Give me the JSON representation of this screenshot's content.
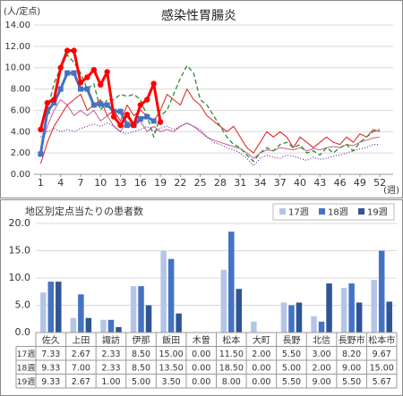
{
  "chart_data": [
    {
      "type": "line",
      "title": "感染性胃腸炎",
      "ylabel": "(人/定点)",
      "xlabel": "(週)",
      "x": [
        1,
        2,
        3,
        4,
        5,
        6,
        7,
        8,
        9,
        10,
        11,
        12,
        13,
        14,
        15,
        16,
        17,
        18,
        19,
        20,
        21,
        22,
        23,
        24,
        25,
        26,
        27,
        28,
        29,
        30,
        31,
        32,
        33,
        34,
        35,
        36,
        37,
        38,
        39,
        40,
        41,
        42,
        43,
        44,
        45,
        46,
        47,
        48,
        49,
        50,
        51,
        52
      ],
      "xlim": [
        0,
        54
      ],
      "xticks": [
        1,
        4,
        7,
        10,
        13,
        16,
        19,
        22,
        25,
        28,
        31,
        34,
        37,
        40,
        43,
        46,
        49,
        52
      ],
      "ylim": [
        0,
        14
      ],
      "yticks": [
        {
          "value": 0,
          "label": "0.00"
        },
        {
          "value": 2,
          "label": "2.00"
        },
        {
          "value": 4,
          "label": "4.00"
        },
        {
          "value": 6,
          "label": "6.00"
        },
        {
          "value": 8,
          "label": "8.00"
        },
        {
          "value": 10,
          "label": "10.00"
        },
        {
          "value": 12,
          "label": "12.00"
        },
        {
          "value": 14,
          "label": "14.00"
        }
      ],
      "grid": true,
      "series": [
        {
          "color": "#c06090",
          "line_width": 1,
          "values": [
            2.5,
            4.5,
            6.0,
            7.0,
            6.5,
            5.5,
            6.0,
            5.5,
            6.0,
            5.0,
            5.5,
            4.5,
            4.0,
            5.0,
            4.5,
            5.0,
            4.0,
            4.5,
            4.0,
            4.2,
            4.0,
            4.5,
            4.8,
            4.5,
            4.0,
            3.5,
            3.2,
            3.0,
            2.8,
            2.6,
            2.4,
            2.0,
            1.5,
            2.0,
            2.3,
            2.2,
            2.5,
            2.4,
            2.3,
            2.5,
            2.2,
            2.4,
            2.3,
            2.5,
            2.6,
            2.5,
            2.8,
            2.7,
            3.0,
            3.2,
            3.4,
            3.5
          ]
        },
        {
          "color": "#7030a0",
          "line_width": 1.2,
          "dash": "1,2",
          "values": [
            3.5,
            4.0,
            4.3,
            4.0,
            4.2,
            4.0,
            4.3,
            4.5,
            4.7,
            4.5,
            4.8,
            4.5,
            4.0,
            3.8,
            4.0,
            4.2,
            4.5,
            4.0,
            4.3,
            4.5,
            4.2,
            4.5,
            4.8,
            4.5,
            4.2,
            3.5,
            3.0,
            2.8,
            2.5,
            2.3,
            2.0,
            1.5,
            0.8,
            1.5,
            1.8,
            1.6,
            1.5,
            1.8,
            1.7,
            1.5,
            1.3,
            1.6,
            1.4,
            1.5,
            1.7,
            1.8,
            2.0,
            2.2,
            2.4,
            2.5,
            2.8,
            2.8
          ]
        },
        {
          "color": "#e02020",
          "line_width": 1,
          "values": [
            1.0,
            3.0,
            4.5,
            5.5,
            6.5,
            7.0,
            7.5,
            6.0,
            6.5,
            7.0,
            5.5,
            6.0,
            5.0,
            6.5,
            5.5,
            6.0,
            5.5,
            5.0,
            6.0,
            7.5,
            7.0,
            6.5,
            8.0,
            7.0,
            6.5,
            5.5,
            5.0,
            4.5,
            4.0,
            4.5,
            3.5,
            2.5,
            2.0,
            3.0,
            4.0,
            3.5,
            4.0,
            3.5,
            2.5,
            3.5,
            3.0,
            2.5,
            3.0,
            3.5,
            3.0,
            2.8,
            3.5,
            3.0,
            3.8,
            3.5,
            4.2,
            4.0
          ]
        },
        {
          "color": "#2e8b2e",
          "line_width": 1.3,
          "dash": "5,3",
          "values": [
            2.0,
            6.0,
            8.5,
            10.0,
            11.2,
            10.5,
            9.5,
            8.0,
            8.5,
            6.0,
            7.0,
            7.0,
            7.5,
            7.3,
            7.5,
            7.0,
            5.5,
            3.5,
            5.5,
            6.0,
            7.5,
            9.0,
            10.2,
            9.5,
            7.0,
            6.5,
            5.5,
            4.5,
            3.5,
            2.8,
            2.5,
            1.8,
            1.2,
            2.0,
            2.5,
            2.2,
            2.8,
            3.0,
            2.5,
            2.8,
            2.0,
            2.2,
            1.8,
            2.5,
            2.0,
            2.5,
            2.8,
            2.2,
            3.0,
            3.5,
            4.0,
            4.2
          ]
        },
        {
          "color": "#4472c4",
          "line_width": 3,
          "marker": "square",
          "values": [
            1.9,
            5.9,
            6.7,
            8.0,
            9.5,
            9.5,
            8.0,
            8.0,
            6.5,
            6.6,
            6.5,
            5.9,
            5.9,
            4.6,
            4.6,
            5.2,
            5.4,
            5.0,
            null,
            null,
            null,
            null,
            null,
            null,
            null,
            null,
            null,
            null,
            null,
            null,
            null,
            null,
            null,
            null,
            null,
            null,
            null,
            null,
            null,
            null,
            null,
            null,
            null,
            null,
            null,
            null,
            null,
            null,
            null,
            null,
            null,
            null
          ]
        },
        {
          "color": "#ff0000",
          "line_width": 3,
          "marker": "circle",
          "values": [
            4.2,
            6.7,
            7.0,
            10.0,
            11.6,
            11.6,
            8.6,
            9.1,
            9.8,
            8.4,
            9.6,
            5.4,
            4.6,
            5.6,
            4.6,
            6.5,
            7.0,
            8.5,
            4.9,
            null,
            null,
            null,
            null,
            null,
            null,
            null,
            null,
            null,
            null,
            null,
            null,
            null,
            null,
            null,
            null,
            null,
            null,
            null,
            null,
            null,
            null,
            null,
            null,
            null,
            null,
            null,
            null,
            null,
            null,
            null,
            null,
            null
          ]
        }
      ]
    },
    {
      "type": "bar",
      "title": "地区別定点当たりの患者数",
      "categories": [
        "佐久",
        "上田",
        "諏訪",
        "伊那",
        "飯田",
        "木曽",
        "松本",
        "大町",
        "長野",
        "北信",
        "長野市",
        "松本市"
      ],
      "ylim": [
        0,
        20
      ],
      "yticks": [
        {
          "value": 0,
          "label": "0.0"
        },
        {
          "value": 5,
          "label": "5.0"
        },
        {
          "value": 10,
          "label": "10.0"
        },
        {
          "value": 15,
          "label": "15.0"
        },
        {
          "value": 20,
          "label": "20.0"
        }
      ],
      "grid": true,
      "series": [
        {
          "name": "17週",
          "color": "#b4c6e7",
          "values": [
            7.33,
            2.67,
            2.33,
            8.5,
            15,
            0,
            11.5,
            2,
            5.5,
            3,
            8.2,
            9.67
          ],
          "value_labels": [
            "7.33",
            "2.67",
            "2.33",
            "8.50",
            "15.00",
            "0.00",
            "11.50",
            "2.00",
            "5.50",
            "3.00",
            "8.20",
            "9.67"
          ]
        },
        {
          "name": "18週",
          "color": "#4472c4",
          "values": [
            9.33,
            7,
            2.33,
            8.5,
            13.5,
            0,
            18.5,
            0,
            5,
            2,
            9,
            15
          ],
          "value_labels": [
            "9.33",
            "7.00",
            "2.33",
            "8.50",
            "13.50",
            "0.00",
            "18.50",
            "0.00",
            "5.00",
            "2.00",
            "9.00",
            "15.00"
          ]
        },
        {
          "name": "19週",
          "color": "#2f5597",
          "values": [
            9.33,
            2.67,
            1,
            5,
            3.5,
            0,
            8,
            0,
            5.5,
            9,
            5.5,
            5.67
          ],
          "value_labels": [
            "9.33",
            "2.67",
            "1.00",
            "5.00",
            "3.50",
            "0.00",
            "8.00",
            "0.00",
            "5.50",
            "9.00",
            "5.50",
            "5.67"
          ]
        }
      ]
    }
  ]
}
